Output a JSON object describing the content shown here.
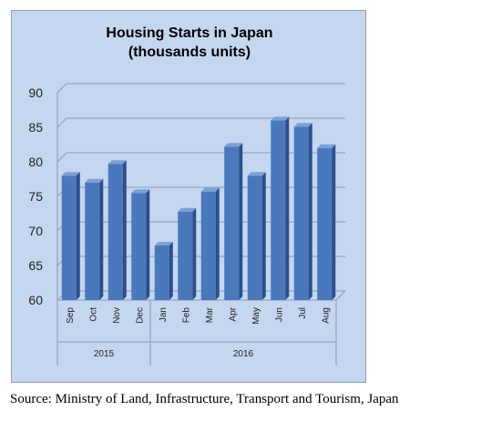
{
  "chart_data": {
    "type": "bar",
    "title": "Housing Starts in Japan",
    "subtitle": "(thousands units)",
    "categories": [
      "Sep",
      "Oct",
      "Nov",
      "Dec",
      "Jan",
      "Feb",
      "Mar",
      "Apr",
      "May",
      "Jun",
      "Jul",
      "Aug"
    ],
    "groups": [
      {
        "label": "2015",
        "count": 4
      },
      {
        "label": "2016",
        "count": 8
      }
    ],
    "values": [
      78.0,
      77.0,
      79.7,
      75.5,
      67.9,
      72.8,
      75.7,
      82.2,
      78.0,
      86.0,
      85.1,
      82.0
    ],
    "ylim": [
      60,
      90
    ],
    "yticks": [
      60,
      65,
      70,
      75,
      80,
      85,
      90
    ],
    "grid": true,
    "colors": {
      "bar_front": "#4a78bc",
      "bar_side": "#2a4f8c",
      "bar_top": "#7ba0d6",
      "plot_bg": "#c5d6ef"
    }
  },
  "source": "Source: Ministry of Land, Infrastructure, Transport and Tourism, Japan"
}
